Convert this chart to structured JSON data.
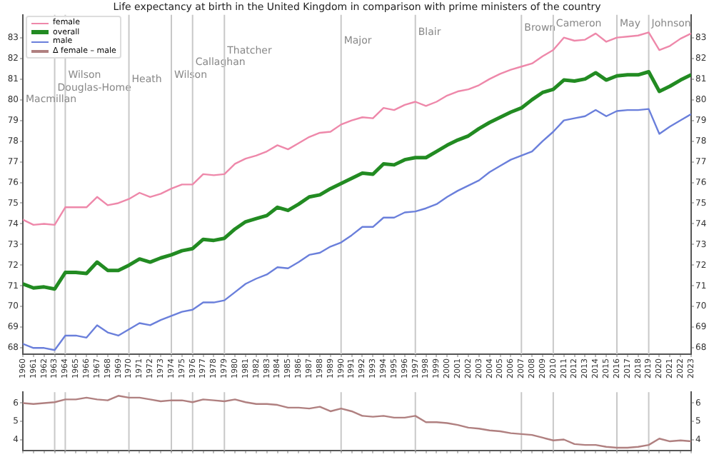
{
  "chart_data": [
    {
      "type": "line",
      "title": "Life expectancy at birth in the United Kingdom in comparison with prime ministers of the country",
      "x": [
        1960,
        1961,
        1962,
        1963,
        1964,
        1965,
        1966,
        1967,
        1968,
        1969,
        1970,
        1971,
        1972,
        1973,
        1974,
        1975,
        1976,
        1977,
        1978,
        1979,
        1980,
        1981,
        1982,
        1983,
        1984,
        1985,
        1986,
        1987,
        1988,
        1989,
        1990,
        1991,
        1992,
        1993,
        1994,
        1995,
        1996,
        1997,
        1998,
        1999,
        2000,
        2001,
        2002,
        2003,
        2004,
        2005,
        2006,
        2007,
        2008,
        2009,
        2010,
        2011,
        2012,
        2013,
        2014,
        2015,
        2016,
        2017,
        2018,
        2019,
        2020,
        2021,
        2022,
        2023
      ],
      "series": [
        {
          "name": "female",
          "color": "#ee88aa",
          "values": [
            74.2,
            73.95,
            74.0,
            73.95,
            74.8,
            74.8,
            74.8,
            75.3,
            74.9,
            75.0,
            75.2,
            75.5,
            75.3,
            75.45,
            75.7,
            75.9,
            75.9,
            76.4,
            76.35,
            76.4,
            76.9,
            77.15,
            77.3,
            77.5,
            77.8,
            77.6,
            77.9,
            78.2,
            78.4,
            78.45,
            78.8,
            79.0,
            79.15,
            79.1,
            79.6,
            79.5,
            79.75,
            79.9,
            79.7,
            79.9,
            80.2,
            80.4,
            80.5,
            80.7,
            81.0,
            81.25,
            81.45,
            81.6,
            81.75,
            82.1,
            82.4,
            83.0,
            82.85,
            82.9,
            83.2,
            82.8,
            83.0,
            83.05,
            83.1,
            83.25,
            82.4,
            82.6,
            82.95,
            83.2
          ]
        },
        {
          "name": "overall",
          "color": "#228b22",
          "values": [
            71.1,
            70.9,
            70.95,
            70.85,
            71.65,
            71.65,
            71.6,
            72.15,
            71.75,
            71.75,
            72.0,
            72.3,
            72.15,
            72.35,
            72.5,
            72.7,
            72.8,
            73.25,
            73.2,
            73.3,
            73.75,
            74.1,
            74.25,
            74.4,
            74.8,
            74.65,
            74.95,
            75.3,
            75.4,
            75.7,
            75.95,
            76.2,
            76.45,
            76.4,
            76.9,
            76.85,
            77.1,
            77.2,
            77.2,
            77.5,
            77.8,
            78.05,
            78.25,
            78.6,
            78.9,
            79.15,
            79.4,
            79.6,
            80.0,
            80.35,
            80.5,
            80.95,
            80.9,
            81.0,
            81.3,
            80.95,
            81.15,
            81.2,
            81.2,
            81.35,
            80.4,
            80.65,
            80.95,
            81.2
          ]
        },
        {
          "name": "male",
          "color": "#6a7fdb",
          "values": [
            68.2,
            68.0,
            68.0,
            67.9,
            68.6,
            68.6,
            68.5,
            69.1,
            68.75,
            68.6,
            68.9,
            69.2,
            69.1,
            69.35,
            69.55,
            69.75,
            69.85,
            70.2,
            70.2,
            70.3,
            70.7,
            71.1,
            71.35,
            71.55,
            71.9,
            71.85,
            72.15,
            72.5,
            72.6,
            72.9,
            73.1,
            73.45,
            73.85,
            73.85,
            74.3,
            74.3,
            74.55,
            74.6,
            74.75,
            74.95,
            75.3,
            75.6,
            75.85,
            76.1,
            76.5,
            76.8,
            77.1,
            77.3,
            77.5,
            78.0,
            78.45,
            79.0,
            79.1,
            79.2,
            79.5,
            79.2,
            79.45,
            79.5,
            79.5,
            79.55,
            78.35,
            78.7,
            79.0,
            79.3
          ]
        }
      ],
      "xlim": [
        1960,
        2023
      ],
      "xticks": [
        1960,
        1961,
        1962,
        1963,
        1964,
        1965,
        1966,
        1967,
        1968,
        1969,
        1970,
        1971,
        1972,
        1973,
        1974,
        1975,
        1976,
        1977,
        1978,
        1979,
        1980,
        1981,
        1982,
        1983,
        1984,
        1985,
        1986,
        1987,
        1988,
        1989,
        1990,
        1991,
        1992,
        1993,
        1994,
        1995,
        1996,
        1997,
        1998,
        1999,
        2000,
        2001,
        2002,
        2003,
        2004,
        2005,
        2006,
        2007,
        2008,
        2009,
        2010,
        2011,
        2012,
        2013,
        2014,
        2015,
        2016,
        2017,
        2018,
        2019,
        2020,
        2021,
        2022,
        2023
      ],
      "ylim": [
        67.7,
        84.1
      ],
      "yticks": [
        68,
        69,
        70,
        71,
        72,
        73,
        74,
        75,
        76,
        77,
        78,
        79,
        80,
        81,
        82,
        83
      ],
      "y2lim": [
        67.7,
        84.1
      ],
      "y2ticks": [
        68,
        69,
        70,
        71,
        72,
        73,
        74,
        75,
        76,
        77,
        78,
        79,
        80,
        81,
        82,
        83
      ],
      "ref_lines": [
        {
          "axis": "x",
          "value": 1963,
          "label": "Douglas-Home"
        },
        {
          "axis": "x",
          "value": 1964,
          "label": "Wilson"
        },
        {
          "axis": "x",
          "value": 1970,
          "label": "Heath"
        },
        {
          "axis": "x",
          "value": 1974,
          "label": "Wilson"
        },
        {
          "axis": "x",
          "value": 1976,
          "label": "Callaghan"
        },
        {
          "axis": "x",
          "value": 1979,
          "label": "Thatcher"
        },
        {
          "axis": "x",
          "value": 1990,
          "label": "Major"
        },
        {
          "axis": "x",
          "value": 1997,
          "label": "Blair"
        },
        {
          "axis": "x",
          "value": 2007,
          "label": "Brown"
        },
        {
          "axis": "x",
          "value": 2010,
          "label": "Cameron"
        },
        {
          "axis": "x",
          "value": 2016,
          "label": "May"
        },
        {
          "axis": "x",
          "value": 2019,
          "label": "Johnson"
        }
      ],
      "annotations": [
        "Macmillan"
      ],
      "legend": "top left"
    },
    {
      "type": "line",
      "x": [
        1960,
        1961,
        1962,
        1963,
        1964,
        1965,
        1966,
        1967,
        1968,
        1969,
        1970,
        1971,
        1972,
        1973,
        1974,
        1975,
        1976,
        1977,
        1978,
        1979,
        1980,
        1981,
        1982,
        1983,
        1984,
        1985,
        1986,
        1987,
        1988,
        1989,
        1990,
        1991,
        1992,
        1993,
        1994,
        1995,
        1996,
        1997,
        1998,
        1999,
        2000,
        2001,
        2002,
        2003,
        2004,
        2005,
        2006,
        2007,
        2008,
        2009,
        2010,
        2011,
        2012,
        2013,
        2014,
        2015,
        2016,
        2017,
        2018,
        2019,
        2020,
        2021,
        2022,
        2023
      ],
      "series": [
        {
          "name": "Δ female – male",
          "color": "#b08080",
          "values": [
            6.0,
            5.95,
            6.0,
            6.05,
            6.2,
            6.2,
            6.3,
            6.2,
            6.15,
            6.4,
            6.3,
            6.3,
            6.2,
            6.1,
            6.15,
            6.15,
            6.05,
            6.2,
            6.15,
            6.1,
            6.2,
            6.05,
            5.95,
            5.95,
            5.9,
            5.75,
            5.75,
            5.7,
            5.8,
            5.55,
            5.7,
            5.55,
            5.3,
            5.25,
            5.3,
            5.2,
            5.2,
            5.3,
            4.95,
            4.95,
            4.9,
            4.8,
            4.65,
            4.6,
            4.5,
            4.45,
            4.35,
            4.3,
            4.25,
            4.1,
            3.95,
            4.0,
            3.75,
            3.7,
            3.7,
            3.6,
            3.55,
            3.55,
            3.6,
            3.7,
            4.05,
            3.9,
            3.95,
            3.9
          ]
        }
      ],
      "xlim": [
        1960,
        2023
      ],
      "xticks": [
        1960,
        1961,
        1962,
        1963,
        1964,
        1965,
        1966,
        1967,
        1968,
        1969,
        1970,
        1971,
        1972,
        1973,
        1974,
        1975,
        1976,
        1977,
        1978,
        1979,
        1980,
        1981,
        1982,
        1983,
        1984,
        1985,
        1986,
        1987,
        1988,
        1989,
        1990,
        1991,
        1992,
        1993,
        1994,
        1995,
        1996,
        1997,
        1998,
        1999,
        2000,
        2001,
        2002,
        2003,
        2004,
        2005,
        2006,
        2007,
        2008,
        2009,
        2010,
        2011,
        2012,
        2013,
        2014,
        2015,
        2016,
        2017,
        2018,
        2019,
        2020,
        2021,
        2022,
        2023
      ],
      "ylim": [
        3.4,
        6.6
      ],
      "yticks": [
        4,
        5,
        6
      ],
      "y2lim": [
        3.4,
        6.6
      ],
      "y2ticks": [
        4,
        5,
        6
      ],
      "ref_lines": [
        {
          "axis": "x",
          "value": 1963
        },
        {
          "axis": "x",
          "value": 1964
        },
        {
          "axis": "x",
          "value": 1970
        },
        {
          "axis": "x",
          "value": 1974
        },
        {
          "axis": "x",
          "value": 1976
        },
        {
          "axis": "x",
          "value": 1979
        },
        {
          "axis": "x",
          "value": 1990
        },
        {
          "axis": "x",
          "value": 1997
        },
        {
          "axis": "x",
          "value": 2007
        },
        {
          "axis": "x",
          "value": 2010
        },
        {
          "axis": "x",
          "value": 2016
        },
        {
          "axis": "x",
          "value": 2019
        }
      ],
      "tick_labels": "y"
    }
  ]
}
